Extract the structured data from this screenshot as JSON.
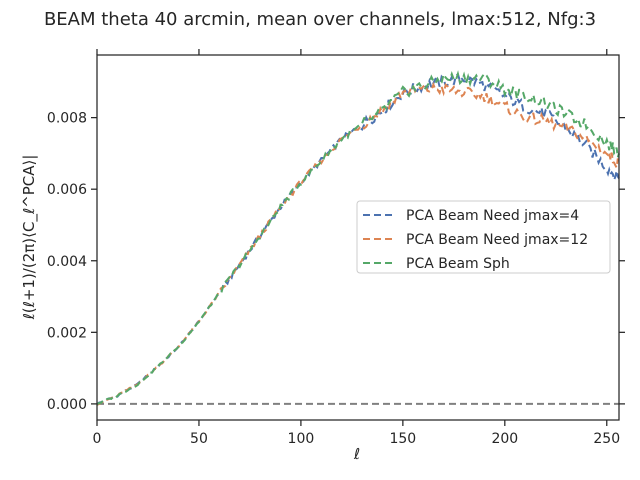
{
  "chart_data": {
    "type": "line",
    "title": "BEAM theta 40 arcmin, mean over channels, lmax:512, Nfg:3",
    "xlabel": "ℓ",
    "ylabel": "ℓ(ℓ+1)/(2π)⟨C_ℓ^PCA⟩|",
    "xlim": [
      0,
      256
    ],
    "ylim": [
      -0.00045,
      0.00975
    ],
    "x_ticks": [
      0,
      50,
      100,
      150,
      200,
      250
    ],
    "y_ticks": [
      0.0,
      0.002,
      0.004,
      0.006,
      0.008
    ],
    "x_tick_labels": [
      "0",
      "50",
      "100",
      "150",
      "200",
      "250"
    ],
    "y_tick_labels": [
      "0.000",
      "0.002",
      "0.004",
      "0.006",
      "0.008"
    ],
    "grid": false,
    "legend_position": "center-right",
    "reference_line": {
      "y": 0.0,
      "style": "dashed",
      "color": "#808080"
    },
    "series": [
      {
        "name": "PCA Beam Need jmax=4",
        "color": "#4c72b0",
        "style": "dashed",
        "points": [
          [
            0,
            0.0
          ],
          [
            10,
            0.00023
          ],
          [
            20,
            0.00055
          ],
          [
            30,
            0.00105
          ],
          [
            40,
            0.0016
          ],
          [
            50,
            0.0023
          ],
          [
            60,
            0.0031
          ],
          [
            70,
            0.0039
          ],
          [
            80,
            0.0047
          ],
          [
            90,
            0.0055
          ],
          [
            100,
            0.0062
          ],
          [
            110,
            0.0068
          ],
          [
            120,
            0.0074
          ],
          [
            130,
            0.0078
          ],
          [
            140,
            0.0082
          ],
          [
            150,
            0.0087
          ],
          [
            160,
            0.0089
          ],
          [
            170,
            0.009
          ],
          [
            180,
            0.0091
          ],
          [
            190,
            0.0089
          ],
          [
            200,
            0.0086
          ],
          [
            210,
            0.0083
          ],
          [
            220,
            0.0081
          ],
          [
            230,
            0.0077
          ],
          [
            240,
            0.0072
          ],
          [
            250,
            0.0066
          ],
          [
            256,
            0.0063
          ]
        ]
      },
      {
        "name": "PCA Beam Need jmax=12",
        "color": "#dd8452",
        "style": "dashed",
        "points": [
          [
            0,
            0.0
          ],
          [
            10,
            0.00023
          ],
          [
            20,
            0.00055
          ],
          [
            30,
            0.00105
          ],
          [
            40,
            0.0016
          ],
          [
            50,
            0.0023
          ],
          [
            60,
            0.0031
          ],
          [
            70,
            0.0039
          ],
          [
            80,
            0.0047
          ],
          [
            90,
            0.0055
          ],
          [
            100,
            0.0062
          ],
          [
            110,
            0.0068
          ],
          [
            120,
            0.0074
          ],
          [
            130,
            0.0078
          ],
          [
            140,
            0.0082
          ],
          [
            150,
            0.0087
          ],
          [
            160,
            0.0088
          ],
          [
            170,
            0.0088
          ],
          [
            180,
            0.0087
          ],
          [
            190,
            0.0086
          ],
          [
            200,
            0.0083
          ],
          [
            210,
            0.008
          ],
          [
            220,
            0.0079
          ],
          [
            230,
            0.0077
          ],
          [
            240,
            0.0074
          ],
          [
            250,
            0.007
          ],
          [
            256,
            0.0067
          ]
        ]
      },
      {
        "name": "PCA Beam Sph",
        "color": "#55a868",
        "style": "dashed",
        "points": [
          [
            0,
            0.0
          ],
          [
            10,
            0.00023
          ],
          [
            20,
            0.00055
          ],
          [
            30,
            0.00105
          ],
          [
            40,
            0.0016
          ],
          [
            50,
            0.0023
          ],
          [
            60,
            0.0031
          ],
          [
            70,
            0.0039
          ],
          [
            80,
            0.0047
          ],
          [
            90,
            0.0055
          ],
          [
            100,
            0.0062
          ],
          [
            110,
            0.0068
          ],
          [
            120,
            0.0074
          ],
          [
            130,
            0.0078
          ],
          [
            140,
            0.0082
          ],
          [
            150,
            0.0087
          ],
          [
            160,
            0.0089
          ],
          [
            170,
            0.0091
          ],
          [
            180,
            0.0091
          ],
          [
            190,
            0.0091
          ],
          [
            200,
            0.0088
          ],
          [
            210,
            0.0086
          ],
          [
            220,
            0.0084
          ],
          [
            230,
            0.0081
          ],
          [
            240,
            0.0078
          ],
          [
            250,
            0.0073
          ],
          [
            256,
            0.007
          ]
        ]
      }
    ]
  }
}
